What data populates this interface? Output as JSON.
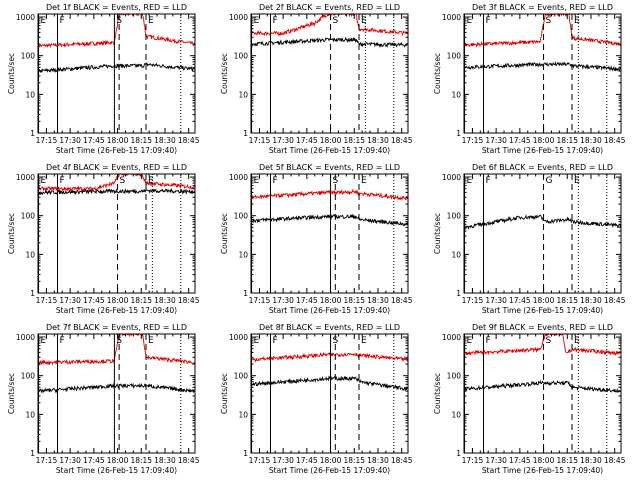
{
  "figure": {
    "background": "#ffffff",
    "colors": {
      "events": "#000000",
      "lld": "#dd0000",
      "axes": "#000000"
    }
  },
  "chart_data": [
    {
      "type": "line",
      "title": "Det 1f BLACK = Events, RED = LLD",
      "xlabel": "Start Time (26-Feb-15 17:09:40)",
      "ylabel": "Counts/sec",
      "x_ticks": [
        "17:15",
        "17:30",
        "17:45",
        "18:00",
        "18:15",
        "18:30",
        "18:45"
      ],
      "y_ticks": [
        "1",
        "10",
        "100",
        "1000"
      ],
      "yscale": "log",
      "xlim": [
        "17:09:40",
        "18:49:00"
      ],
      "ylim": [
        1,
        1200
      ],
      "markers": [
        {
          "label": "E",
          "time": "17:10",
          "style": "solid"
        },
        {
          "label": "F",
          "time": "17:22",
          "style": "solid"
        },
        {
          "label": "S",
          "time": "17:58",
          "style": "solid"
        },
        {
          "label": "",
          "time": "18:01",
          "style": "dashed"
        },
        {
          "label": "E",
          "time": "18:18",
          "style": "dashed"
        },
        {
          "label": "",
          "time": "18:40",
          "style": "dotted"
        }
      ],
      "series": [
        {
          "color": "#dd0000",
          "points": [
            [
              "17:10",
              180
            ],
            [
              "17:58",
              220
            ],
            [
              "18:01",
              1200
            ],
            [
              "18:16",
              1200
            ],
            [
              "18:18",
              320
            ],
            [
              "18:49",
              200
            ]
          ]
        },
        {
          "color": "#000000",
          "points": [
            [
              "17:10",
              40
            ],
            [
              "17:58",
              55
            ],
            [
              "18:01",
              55
            ],
            [
              "18:16",
              55
            ],
            [
              "18:18",
              60
            ],
            [
              "18:49",
              45
            ]
          ]
        }
      ]
    },
    {
      "type": "line",
      "title": "Det 2f BLACK = Events, RED = LLD",
      "xlabel": "Start Time (26-Feb-15 17:09:40)",
      "ylabel": "Counts/sec",
      "x_ticks": [
        "17:15",
        "17:30",
        "17:45",
        "18:00",
        "18:15",
        "18:30",
        "18:45"
      ],
      "y_ticks": [
        "1",
        "10",
        "100",
        "1000"
      ],
      "yscale": "log",
      "xlim": [
        "17:09:40",
        "18:49:00"
      ],
      "ylim": [
        1,
        1200
      ],
      "markers": [
        {
          "label": "E",
          "time": "17:10",
          "style": "solid"
        },
        {
          "label": "F",
          "time": "17:22",
          "style": "solid"
        },
        {
          "label": "S",
          "time": "18:00",
          "style": "dashed"
        },
        {
          "label": "E",
          "time": "18:18",
          "style": "dashed"
        },
        {
          "label": "",
          "time": "18:22",
          "style": "dotted"
        },
        {
          "label": "",
          "time": "18:40",
          "style": "dotted"
        }
      ],
      "series": [
        {
          "color": "#dd0000",
          "points": [
            [
              "17:10",
              380
            ],
            [
              "17:30",
              380
            ],
            [
              "17:50",
              700
            ],
            [
              "17:58",
              1200
            ],
            [
              "18:16",
              1200
            ],
            [
              "18:18",
              500
            ],
            [
              "18:49",
              380
            ]
          ]
        },
        {
          "color": "#000000",
          "points": [
            [
              "17:10",
              200
            ],
            [
              "17:58",
              260
            ],
            [
              "18:01",
              260
            ],
            [
              "18:16",
              260
            ],
            [
              "18:18",
              200
            ],
            [
              "18:49",
              190
            ]
          ]
        }
      ]
    },
    {
      "type": "line",
      "title": "Det 3f BLACK = Events, RED = LLD",
      "xlabel": "Start Time (26-Feb-15 17:09:40)",
      "ylabel": "Counts/sec",
      "x_ticks": [
        "17:15",
        "17:30",
        "17:45",
        "18:00",
        "18:15",
        "18:30",
        "18:45"
      ],
      "y_ticks": [
        "1",
        "10",
        "100",
        "1000"
      ],
      "yscale": "log",
      "xlim": [
        "17:09:40",
        "18:49:00"
      ],
      "ylim": [
        1,
        1200
      ],
      "markers": [
        {
          "label": "E",
          "time": "17:10",
          "style": "solid"
        },
        {
          "label": "F",
          "time": "17:22",
          "style": "solid"
        },
        {
          "label": "S",
          "time": "18:00",
          "style": "dashed"
        },
        {
          "label": "E",
          "time": "18:18",
          "style": "dashed"
        },
        {
          "label": "",
          "time": "18:22",
          "style": "dotted"
        },
        {
          "label": "",
          "time": "18:40",
          "style": "dotted"
        }
      ],
      "series": [
        {
          "color": "#dd0000",
          "points": [
            [
              "17:10",
              190
            ],
            [
              "17:58",
              230
            ],
            [
              "18:01",
              1200
            ],
            [
              "18:16",
              1200
            ],
            [
              "18:18",
              290
            ],
            [
              "18:49",
              200
            ]
          ]
        },
        {
          "color": "#000000",
          "points": [
            [
              "17:10",
              50
            ],
            [
              "17:58",
              60
            ],
            [
              "18:01",
              60
            ],
            [
              "18:16",
              60
            ],
            [
              "18:18",
              55
            ],
            [
              "18:49",
              45
            ]
          ]
        }
      ]
    },
    {
      "type": "line",
      "title": "Det 4f BLACK = Events, RED = LLD",
      "xlabel": "Start Time (26-Feb-15 17:09:40)",
      "ylabel": "Counts/sec",
      "x_ticks": [
        "17:15",
        "17:30",
        "17:45",
        "18:00",
        "18:15",
        "18:30",
        "18:45"
      ],
      "y_ticks": [
        "1",
        "10",
        "100",
        "1000"
      ],
      "yscale": "log",
      "xlim": [
        "17:09:40",
        "18:49:00"
      ],
      "ylim": [
        1,
        1200
      ],
      "markers": [
        {
          "label": "E",
          "time": "17:10",
          "style": "solid"
        },
        {
          "label": "F",
          "time": "17:22",
          "style": "solid"
        },
        {
          "label": "S",
          "time": "18:00",
          "style": "dashed"
        },
        {
          "label": "E",
          "time": "18:18",
          "style": "dashed"
        },
        {
          "label": "",
          "time": "18:22",
          "style": "dotted"
        },
        {
          "label": "",
          "time": "18:40",
          "style": "dotted"
        }
      ],
      "series": [
        {
          "color": "#dd0000",
          "points": [
            [
              "17:10",
              500
            ],
            [
              "17:45",
              500
            ],
            [
              "17:58",
              700
            ],
            [
              "18:01",
              1200
            ],
            [
              "18:15",
              1200
            ],
            [
              "18:18",
              700
            ],
            [
              "18:49",
              550
            ]
          ]
        },
        {
          "color": "#000000",
          "points": [
            [
              "17:10",
              400
            ],
            [
              "17:58",
              430
            ],
            [
              "18:01",
              430
            ],
            [
              "18:16",
              430
            ],
            [
              "18:18",
              450
            ],
            [
              "18:49",
              420
            ]
          ]
        }
      ]
    },
    {
      "type": "line",
      "title": "Det 5f BLACK = Events, RED = LLD",
      "xlabel": "Start Time (26-Feb-15 17:09:40)",
      "ylabel": "Counts/sec",
      "x_ticks": [
        "17:15",
        "17:30",
        "17:45",
        "18:00",
        "18:15",
        "18:30",
        "18:45"
      ],
      "y_ticks": [
        "1",
        "10",
        "100",
        "1000"
      ],
      "yscale": "log",
      "xlim": [
        "17:09:40",
        "18:49:00"
      ],
      "ylim": [
        1,
        1200
      ],
      "markers": [
        {
          "label": "E",
          "time": "17:10",
          "style": "solid"
        },
        {
          "label": "F",
          "time": "17:22",
          "style": "solid"
        },
        {
          "label": "S",
          "time": "18:00",
          "style": "solid"
        },
        {
          "label": "",
          "time": "18:03",
          "style": "dashed"
        },
        {
          "label": "E",
          "time": "18:18",
          "style": "dashed"
        },
        {
          "label": "",
          "time": "18:40",
          "style": "dotted"
        }
      ],
      "series": [
        {
          "color": "#dd0000",
          "points": [
            [
              "17:10",
              300
            ],
            [
              "17:58",
              400
            ],
            [
              "18:03",
              400
            ],
            [
              "18:16",
              420
            ],
            [
              "18:18",
              380
            ],
            [
              "18:49",
              280
            ]
          ]
        },
        {
          "color": "#000000",
          "points": [
            [
              "17:10",
              75
            ],
            [
              "17:58",
              95
            ],
            [
              "18:03",
              95
            ],
            [
              "18:16",
              95
            ],
            [
              "18:18",
              80
            ],
            [
              "18:49",
              60
            ]
          ]
        }
      ]
    },
    {
      "type": "line",
      "title": "Det 6f BLACK = Events, RED = LLD",
      "xlabel": "Start Time (26-Feb-15 17:09:40)",
      "ylabel": "Counts/sec",
      "x_ticks": [
        "17:15",
        "17:30",
        "17:45",
        "18:00",
        "18:15",
        "18:30",
        "18:45"
      ],
      "y_ticks": [
        "1",
        "10",
        "100",
        "1000"
      ],
      "yscale": "log",
      "xlim": [
        "17:09:40",
        "18:49:00"
      ],
      "ylim": [
        1,
        1200
      ],
      "markers": [
        {
          "label": "E",
          "time": "17:10",
          "style": "solid"
        },
        {
          "label": "F",
          "time": "17:22",
          "style": "solid"
        },
        {
          "label": "G",
          "time": "18:00",
          "style": "dashed"
        },
        {
          "label": "E",
          "time": "18:18",
          "style": "dashed"
        },
        {
          "label": "",
          "time": "18:22",
          "style": "dotted"
        },
        {
          "label": "",
          "time": "18:40",
          "style": "dotted"
        }
      ],
      "series": [
        {
          "color": "#000000",
          "points": [
            [
              "17:10",
              50
            ],
            [
              "17:45",
              90
            ],
            [
              "17:58",
              95
            ],
            [
              "18:01",
              70
            ],
            [
              "18:16",
              80
            ],
            [
              "18:18",
              70
            ],
            [
              "18:49",
              55
            ]
          ]
        }
      ]
    },
    {
      "type": "line",
      "title": "Det 7f BLACK = Events, RED = LLD",
      "xlabel": "Start Time (26-Feb-15 17:09:40)",
      "ylabel": "Counts/sec",
      "x_ticks": [
        "17:15",
        "17:30",
        "17:45",
        "18:00",
        "18:15",
        "18:30",
        "18:45"
      ],
      "y_ticks": [
        "1",
        "10",
        "100",
        "1000"
      ],
      "yscale": "log",
      "xlim": [
        "17:09:40",
        "18:49:00"
      ],
      "ylim": [
        1,
        1200
      ],
      "markers": [
        {
          "label": "E",
          "time": "17:10",
          "style": "solid"
        },
        {
          "label": "F",
          "time": "17:22",
          "style": "solid"
        },
        {
          "label": "S",
          "time": "17:58",
          "style": "solid"
        },
        {
          "label": "",
          "time": "18:01",
          "style": "dashed"
        },
        {
          "label": "E",
          "time": "18:18",
          "style": "dashed"
        },
        {
          "label": "",
          "time": "18:40",
          "style": "dotted"
        }
      ],
      "series": [
        {
          "color": "#dd0000",
          "points": [
            [
              "17:10",
              220
            ],
            [
              "17:58",
              240
            ],
            [
              "18:01",
              1200
            ],
            [
              "18:16",
              1200
            ],
            [
              "18:18",
              300
            ],
            [
              "18:49",
              220
            ]
          ]
        },
        {
          "color": "#000000",
          "points": [
            [
              "17:10",
              40
            ],
            [
              "17:58",
              55
            ],
            [
              "18:01",
              55
            ],
            [
              "18:16",
              55
            ],
            [
              "18:18",
              55
            ],
            [
              "18:49",
              40
            ]
          ]
        }
      ]
    },
    {
      "type": "line",
      "title": "Det 8f BLACK = Events, RED = LLD",
      "xlabel": "Start Time (26-Feb-15 17:09:40)",
      "ylabel": "Counts/sec",
      "x_ticks": [
        "17:15",
        "17:30",
        "17:45",
        "18:00",
        "18:15",
        "18:30",
        "18:45"
      ],
      "y_ticks": [
        "1",
        "10",
        "100",
        "1000"
      ],
      "yscale": "log",
      "xlim": [
        "17:09:40",
        "18:49:00"
      ],
      "ylim": [
        1,
        1200
      ],
      "markers": [
        {
          "label": "E",
          "time": "17:10",
          "style": "solid"
        },
        {
          "label": "F",
          "time": "17:22",
          "style": "solid"
        },
        {
          "label": "S",
          "time": "18:00",
          "style": "solid"
        },
        {
          "label": "",
          "time": "18:03",
          "style": "dashed"
        },
        {
          "label": "E",
          "time": "18:18",
          "style": "dashed"
        },
        {
          "label": "",
          "time": "18:40",
          "style": "dotted"
        }
      ],
      "series": [
        {
          "color": "#dd0000",
          "points": [
            [
              "17:10",
              260
            ],
            [
              "17:58",
              350
            ],
            [
              "18:03",
              350
            ],
            [
              "18:16",
              370
            ],
            [
              "18:18",
              340
            ],
            [
              "18:49",
              260
            ]
          ]
        },
        {
          "color": "#000000",
          "points": [
            [
              "17:10",
              60
            ],
            [
              "17:58",
              85
            ],
            [
              "18:03",
              85
            ],
            [
              "18:16",
              85
            ],
            [
              "18:18",
              70
            ],
            [
              "18:49",
              45
            ]
          ]
        }
      ]
    },
    {
      "type": "line",
      "title": "Det 9f BLACK = Events, RED = LLD",
      "xlabel": "Start Time (26-Feb-15 17:09:40)",
      "ylabel": "Counts/sec",
      "x_ticks": [
        "17:15",
        "17:30",
        "17:45",
        "18:00",
        "18:15",
        "18:30",
        "18:45"
      ],
      "y_ticks": [
        "1",
        "10",
        "100",
        "1000"
      ],
      "yscale": "log",
      "xlim": [
        "17:09:40",
        "18:49:00"
      ],
      "ylim": [
        1,
        1200
      ],
      "markers": [
        {
          "label": "E",
          "time": "17:10",
          "style": "solid"
        },
        {
          "label": "F",
          "time": "17:22",
          "style": "solid"
        },
        {
          "label": "S",
          "time": "18:00",
          "style": "dashed"
        },
        {
          "label": "E",
          "time": "18:18",
          "style": "dashed"
        },
        {
          "label": "",
          "time": "18:22",
          "style": "dotted"
        },
        {
          "label": "",
          "time": "18:40",
          "style": "dotted"
        }
      ],
      "series": [
        {
          "color": "#dd0000",
          "points": [
            [
              "17:10",
              380
            ],
            [
              "17:58",
              480
            ],
            [
              "18:01",
              1200
            ],
            [
              "18:12",
              1200
            ],
            [
              "18:14",
              380
            ],
            [
              "18:18",
              480
            ],
            [
              "18:49",
              380
            ]
          ]
        },
        {
          "color": "#000000",
          "points": [
            [
              "17:10",
              45
            ],
            [
              "17:58",
              65
            ],
            [
              "18:01",
              65
            ],
            [
              "18:16",
              65
            ],
            [
              "18:18",
              50
            ],
            [
              "18:49",
              40
            ]
          ]
        }
      ]
    }
  ]
}
